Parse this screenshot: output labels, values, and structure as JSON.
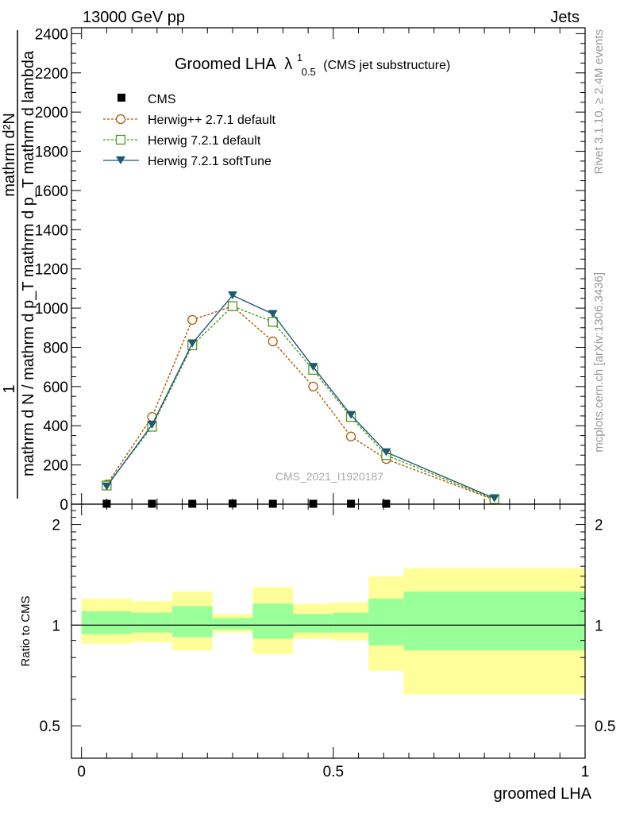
{
  "header": {
    "left": "13000 GeV pp",
    "right": "Jets"
  },
  "side": {
    "rivet": "Rivet 3.1.10, ≥ 2.4M events",
    "mcplots": "mcplots.cern.ch [arXiv:1306.3436]"
  },
  "colors": {
    "cms": "#000000",
    "herwigpp": "#b35900",
    "herwig_default": "#4c9a1a",
    "herwig_soft": "#1f5a72",
    "band_outer": "#ffff99",
    "band_inner": "#99ff99"
  },
  "chart_data": [
    {
      "type": "line",
      "title": "Groomed LHA",
      "title_symbol": "λ",
      "title_sup": "1",
      "title_sub": "0.5",
      "title_note": "(CMS jet substructure)",
      "watermark": "CMS_2021_I1920187",
      "ylabel_top": "1",
      "ylabel_frac_num": "mathrm d²N",
      "ylabel_frac_den": "mathrm d N / mathrm d p_T  mathrm d p_T mathrm d lambda",
      "xlim": [
        -0.02,
        1.0
      ],
      "ylim": [
        0,
        2430
      ],
      "yticks": [
        0,
        200,
        400,
        600,
        800,
        1000,
        1200,
        1400,
        1600,
        1800,
        2000,
        2200,
        2400
      ],
      "ytick_labels": [
        "0",
        "200",
        "400",
        "600",
        "800",
        "1000",
        "1200",
        "1400",
        "1600",
        "1800",
        "2000",
        "2200",
        "2400"
      ],
      "grid": false,
      "legend": "top-left",
      "series": [
        {
          "name": "CMS",
          "marker": "square",
          "x": [
            0.05,
            0.14,
            0.22,
            0.3,
            0.38,
            0.46,
            0.535,
            0.605
          ],
          "values": [
            2,
            2,
            2,
            3,
            2,
            2,
            2,
            2
          ]
        },
        {
          "name": "Herwig++ 2.7.1 default",
          "marker": "circle",
          "x": [
            0.05,
            0.14,
            0.22,
            0.3,
            0.38,
            0.46,
            0.535,
            0.605,
            0.82
          ],
          "values": [
            100,
            445,
            940,
            1010,
            830,
            600,
            345,
            230,
            22
          ]
        },
        {
          "name": "Herwig 7.2.1 default",
          "marker": "open-square",
          "x": [
            0.05,
            0.14,
            0.22,
            0.3,
            0.38,
            0.46,
            0.535,
            0.605,
            0.82
          ],
          "values": [
            95,
            395,
            810,
            1010,
            930,
            685,
            445,
            250,
            25
          ]
        },
        {
          "name": "Herwig 7.2.1 softTune",
          "marker": "triangle-down",
          "x": [
            0.05,
            0.14,
            0.22,
            0.3,
            0.38,
            0.46,
            0.535,
            0.605,
            0.82
          ],
          "values": [
            90,
            405,
            820,
            1065,
            970,
            700,
            455,
            265,
            30
          ]
        }
      ]
    },
    {
      "type": "area",
      "ylabel": "Ratio to CMS",
      "xlabel": "groomed LHA",
      "xlim": [
        -0.02,
        1.0
      ],
      "ylim": [
        0.4,
        2.3
      ],
      "log_y": true,
      "yticks": [
        0.5,
        1,
        2
      ],
      "ytick_labels": [
        "0.5",
        "1",
        "2"
      ],
      "xticks": [
        0,
        0.5,
        1
      ],
      "xtick_labels": [
        "0",
        "0.5",
        "1"
      ],
      "bins": [
        {
          "lo": 0.0,
          "hi": 0.1,
          "outer": [
            0.88,
            1.2
          ],
          "inner": [
            0.94,
            1.1
          ]
        },
        {
          "lo": 0.1,
          "hi": 0.18,
          "outer": [
            0.89,
            1.18
          ],
          "inner": [
            0.95,
            1.09
          ]
        },
        {
          "lo": 0.18,
          "hi": 0.26,
          "outer": [
            0.84,
            1.26
          ],
          "inner": [
            0.92,
            1.14
          ]
        },
        {
          "lo": 0.26,
          "hi": 0.34,
          "outer": [
            0.95,
            1.08
          ],
          "inner": [
            0.97,
            1.05
          ]
        },
        {
          "lo": 0.34,
          "hi": 0.42,
          "outer": [
            0.82,
            1.3
          ],
          "inner": [
            0.91,
            1.16
          ]
        },
        {
          "lo": 0.42,
          "hi": 0.5,
          "outer": [
            0.91,
            1.16
          ],
          "inner": [
            0.95,
            1.08
          ]
        },
        {
          "lo": 0.5,
          "hi": 0.57,
          "outer": [
            0.9,
            1.17
          ],
          "inner": [
            0.95,
            1.09
          ]
        },
        {
          "lo": 0.57,
          "hi": 0.64,
          "outer": [
            0.73,
            1.4
          ],
          "inner": [
            0.87,
            1.2
          ]
        },
        {
          "lo": 0.64,
          "hi": 1.0,
          "outer": [
            0.62,
            1.48
          ],
          "inner": [
            0.84,
            1.26
          ]
        }
      ]
    }
  ]
}
